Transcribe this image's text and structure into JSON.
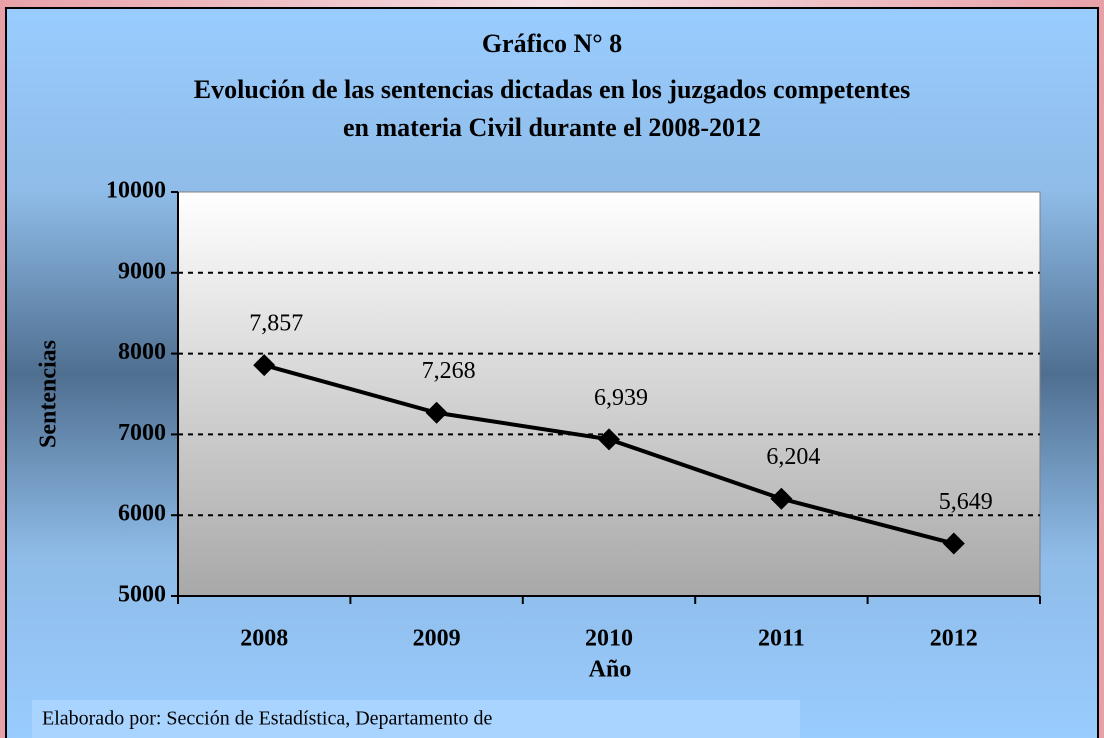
{
  "chart_data": {
    "type": "line",
    "title": [
      "Gráfico N° 8",
      "Evolución de las sentencias dictadas en los juzgados competentes",
      "en materia Civil durante el 2008-2012"
    ],
    "x_label": "Año",
    "y_label": "Sentencias",
    "categories": [
      "2008",
      "2009",
      "2010",
      "2011",
      "2012"
    ],
    "values": [
      7857,
      7268,
      6939,
      6204,
      5649
    ],
    "value_labels": [
      "7,857",
      "7,268",
      "6,939",
      "6,204",
      "5,649"
    ],
    "color": "#000000",
    "ylim": [
      5000,
      10000
    ],
    "yticks": [
      5000,
      6000,
      7000,
      8000,
      9000,
      10000
    ],
    "grid": true,
    "footnote": "Elaborado por: Sección de Estadística, Departamento de"
  }
}
